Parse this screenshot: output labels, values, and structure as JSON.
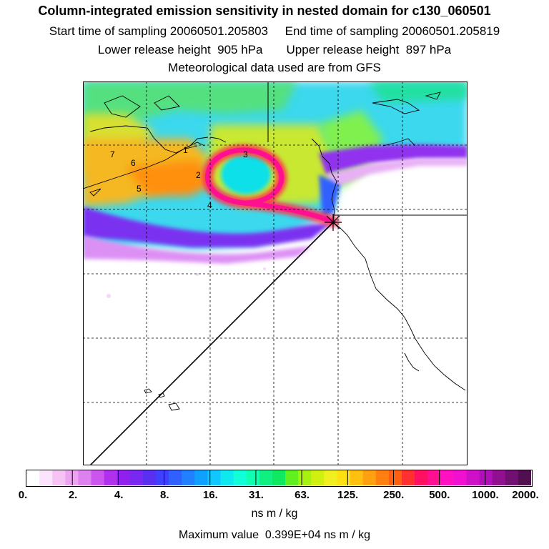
{
  "header": {
    "title": "Column-integrated emission sensitivity in nested domain for c130_060501",
    "start_time_label": "Start time of sampling 20060501.205803",
    "end_time_label": "End time of sampling 20060501.205819",
    "lower_height_label": "Lower release height  905 hPa",
    "upper_height_label": "Upper release height  897 hPa",
    "met_data_label": "Meteorological data used are from GFS"
  },
  "map": {
    "trajectory_labels": [
      "1",
      "2",
      "3",
      "4",
      "5",
      "6",
      "7"
    ],
    "colors": {
      "background": "#ffffff",
      "coastline": "#000000",
      "grid": "#000000",
      "plume_core": "#ff1493",
      "plume_edge": "#ff0066"
    }
  },
  "colorbar": {
    "ticks": [
      "0.",
      "2.",
      "4.",
      "8.",
      "16.",
      "31.",
      "63.",
      "125.",
      "250.",
      "500.",
      "1000.",
      "2000."
    ],
    "colors": [
      "#ffffff",
      "#fce4fc",
      "#f5c4f5",
      "#eda4f0",
      "#dd80f0",
      "#cc55ee",
      "#b030ee",
      "#9020ee",
      "#7828f0",
      "#5a30f0",
      "#4040ff",
      "#3060ff",
      "#2080ff",
      "#10a0ff",
      "#10c8ff",
      "#10e8f0",
      "#10ffd8",
      "#10ffb0",
      "#10f080",
      "#10e860",
      "#60f020",
      "#a8f010",
      "#d0f010",
      "#f0f020",
      "#ffe010",
      "#ffc010",
      "#ffa010",
      "#ff8010",
      "#ff6010",
      "#ff3030",
      "#ff1060",
      "#ff1090",
      "#ff10c0",
      "#f010d0",
      "#d010c8",
      "#b010b8",
      "#901090",
      "#701070",
      "#501050"
    ],
    "units": "ns m / kg"
  },
  "footer": {
    "max_value_label": "Maximum value  0.399E+04 ns m / kg"
  }
}
